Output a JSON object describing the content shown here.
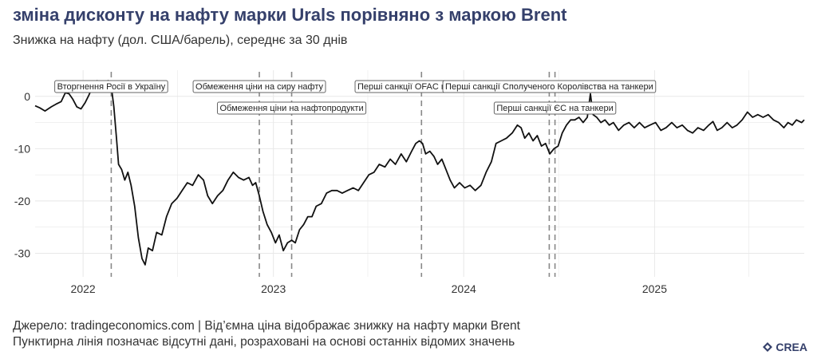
{
  "header": {
    "title": "зміна дисконту на нафту марки Urals порівняно з маркою Brent",
    "subtitle": "Знижка на нафту (дол. США/барель), середнє за 30 днів"
  },
  "footer": {
    "source": "Джерело: tradingeconomics.com | Від’ємна ціна відображає знижку на нафту марки Brent",
    "note": "Пунктирна лінія позначає відсутні дані, розраховані на основі останніх відомих значень",
    "logo_text": "CREA"
  },
  "colors": {
    "title": "#35406b",
    "line": "#111111",
    "event_line": "#888888",
    "grid": "#e8e8e8"
  },
  "chart_data": {
    "type": "line",
    "title": "зміна дисконту на нафту марки Urals порівняно з маркою Brent",
    "subtitle": "Знижка на нафту (дол. США/барель), середнє за 30 днів",
    "xlabel": "",
    "ylabel": "",
    "xlim": [
      "2021-10-01",
      "2025-10-15"
    ],
    "ylim": [
      -34.5,
      5
    ],
    "yticks": [
      0,
      -10,
      -20,
      -30
    ],
    "xticks": [
      "2022",
      "2023",
      "2024",
      "2025"
    ],
    "grid": true,
    "series": [
      {
        "points": [
          [
            "2021-10-01",
            -1.8
          ],
          [
            "2021-10-10",
            -2.2
          ],
          [
            "2021-10-20",
            -2.8
          ],
          [
            "2021-11-01",
            -2.0
          ],
          [
            "2021-11-10",
            -1.5
          ],
          [
            "2021-11-20",
            -1.0
          ],
          [
            "2021-11-28",
            0.7
          ],
          [
            "2021-12-05",
            0.5
          ],
          [
            "2021-12-12",
            -0.5
          ],
          [
            "2021-12-20",
            -2.0
          ],
          [
            "2021-12-28",
            -2.4
          ],
          [
            "2022-01-05",
            -1.2
          ],
          [
            "2022-01-12",
            0.2
          ],
          [
            "2022-01-20",
            2.0
          ],
          [
            "2022-01-28",
            3.0
          ],
          [
            "2022-02-05",
            2.5
          ],
          [
            "2022-02-12",
            1.8
          ],
          [
            "2022-02-18",
            3.0
          ],
          [
            "2022-02-24",
            2.0
          ],
          [
            "2022-03-01",
            -2.0
          ],
          [
            "2022-03-06",
            -8.0
          ],
          [
            "2022-03-10",
            -13.0
          ],
          [
            "2022-03-16",
            -14.0
          ],
          [
            "2022-03-22",
            -16.0
          ],
          [
            "2022-03-28",
            -14.5
          ],
          [
            "2022-04-03",
            -17.0
          ],
          [
            "2022-04-10",
            -21.0
          ],
          [
            "2022-04-17",
            -27.0
          ],
          [
            "2022-04-24",
            -31.0
          ],
          [
            "2022-04-30",
            -32.2
          ],
          [
            "2022-05-06",
            -29.0
          ],
          [
            "2022-05-14",
            -29.5
          ],
          [
            "2022-05-22",
            -26.0
          ],
          [
            "2022-06-01",
            -26.5
          ],
          [
            "2022-06-10",
            -23.0
          ],
          [
            "2022-06-20",
            -20.5
          ],
          [
            "2022-06-30",
            -19.5
          ],
          [
            "2022-07-10",
            -18.0
          ],
          [
            "2022-07-20",
            -16.5
          ],
          [
            "2022-07-30",
            -17.0
          ],
          [
            "2022-08-10",
            -15.0
          ],
          [
            "2022-08-20",
            -16.0
          ],
          [
            "2022-08-28",
            -19.0
          ],
          [
            "2022-09-06",
            -20.5
          ],
          [
            "2022-09-16",
            -19.0
          ],
          [
            "2022-09-26",
            -18.0
          ],
          [
            "2022-10-06",
            -16.0
          ],
          [
            "2022-10-16",
            -14.5
          ],
          [
            "2022-10-26",
            -15.5
          ],
          [
            "2022-11-05",
            -16.0
          ],
          [
            "2022-11-15",
            -15.5
          ],
          [
            "2022-11-22",
            -17.0
          ],
          [
            "2022-11-28",
            -16.5
          ],
          [
            "2022-12-05",
            -19.0
          ],
          [
            "2022-12-12",
            -22.0
          ],
          [
            "2022-12-20",
            -24.5
          ],
          [
            "2022-12-28",
            -26.0
          ],
          [
            "2023-01-05",
            -28.0
          ],
          [
            "2023-01-12",
            -26.5
          ],
          [
            "2023-01-20",
            -29.5
          ],
          [
            "2023-01-28",
            -28.0
          ],
          [
            "2023-02-05",
            -27.5
          ],
          [
            "2023-02-12",
            -28.0
          ],
          [
            "2023-02-20",
            -25.5
          ],
          [
            "2023-02-28",
            -24.5
          ],
          [
            "2023-03-08",
            -23.0
          ],
          [
            "2023-03-16",
            -23.0
          ],
          [
            "2023-03-24",
            -21.0
          ],
          [
            "2023-04-03",
            -20.5
          ],
          [
            "2023-04-13",
            -18.5
          ],
          [
            "2023-04-23",
            -18.0
          ],
          [
            "2023-05-03",
            -18.0
          ],
          [
            "2023-05-13",
            -18.5
          ],
          [
            "2023-05-23",
            -18.0
          ],
          [
            "2023-06-03",
            -17.5
          ],
          [
            "2023-06-13",
            -18.0
          ],
          [
            "2023-06-23",
            -16.5
          ],
          [
            "2023-07-03",
            -15.0
          ],
          [
            "2023-07-13",
            -14.5
          ],
          [
            "2023-07-23",
            -13.0
          ],
          [
            "2023-08-03",
            -13.5
          ],
          [
            "2023-08-13",
            -12.0
          ],
          [
            "2023-08-23",
            -13.0
          ],
          [
            "2023-09-03",
            -11.0
          ],
          [
            "2023-09-13",
            -12.5
          ],
          [
            "2023-09-23",
            -10.5
          ],
          [
            "2023-10-01",
            -9.0
          ],
          [
            "2023-10-08",
            -8.5
          ],
          [
            "2023-10-14",
            -9.0
          ],
          [
            "2023-10-20",
            -11.0
          ],
          [
            "2023-10-28",
            -10.5
          ],
          [
            "2023-11-05",
            -11.5
          ],
          [
            "2023-11-12",
            -13.0
          ],
          [
            "2023-11-20",
            -12.0
          ],
          [
            "2023-11-28",
            -14.0
          ],
          [
            "2023-12-06",
            -16.0
          ],
          [
            "2023-12-14",
            -17.5
          ],
          [
            "2023-12-24",
            -16.5
          ],
          [
            "2024-01-03",
            -17.5
          ],
          [
            "2024-01-13",
            -17.0
          ],
          [
            "2024-01-23",
            -18.0
          ],
          [
            "2024-02-03",
            -17.0
          ],
          [
            "2024-02-13",
            -14.5
          ],
          [
            "2024-02-23",
            -12.5
          ],
          [
            "2024-03-03",
            -9.0
          ],
          [
            "2024-03-13",
            -8.5
          ],
          [
            "2024-03-23",
            -8.0
          ],
          [
            "2024-04-03",
            -7.0
          ],
          [
            "2024-04-13",
            -5.5
          ],
          [
            "2024-04-20",
            -6.0
          ],
          [
            "2024-04-27",
            -8.0
          ],
          [
            "2024-05-05",
            -7.0
          ],
          [
            "2024-05-13",
            -8.5
          ],
          [
            "2024-05-21",
            -7.5
          ],
          [
            "2024-05-29",
            -9.5
          ],
          [
            "2024-06-06",
            -9.0
          ],
          [
            "2024-06-14",
            -11.0
          ],
          [
            "2024-06-22",
            -10.0
          ],
          [
            "2024-06-30",
            -9.5
          ],
          [
            "2024-07-08",
            -7.0
          ],
          [
            "2024-07-16",
            -5.5
          ],
          [
            "2024-07-24",
            -4.5
          ],
          [
            "2024-08-01",
            -4.5
          ],
          [
            "2024-08-09",
            -4.0
          ],
          [
            "2024-08-17",
            -5.0
          ],
          [
            "2024-08-25",
            -4.0
          ],
          [
            "2024-08-31",
            0.5
          ],
          [
            "2024-09-05",
            -3.5
          ],
          [
            "2024-09-12",
            -4.0
          ],
          [
            "2024-09-20",
            -5.0
          ],
          [
            "2024-09-28",
            -4.5
          ],
          [
            "2024-10-06",
            -5.5
          ],
          [
            "2024-10-14",
            -5.0
          ],
          [
            "2024-10-24",
            -6.5
          ],
          [
            "2024-11-03",
            -5.5
          ],
          [
            "2024-11-13",
            -5.0
          ],
          [
            "2024-11-23",
            -6.0
          ],
          [
            "2024-12-03",
            -5.0
          ],
          [
            "2024-12-13",
            -6.0
          ],
          [
            "2024-12-23",
            -5.5
          ],
          [
            "2025-01-03",
            -5.0
          ],
          [
            "2025-01-13",
            -6.5
          ],
          [
            "2025-01-23",
            -6.0
          ],
          [
            "2025-02-03",
            -5.0
          ],
          [
            "2025-02-13",
            -6.0
          ],
          [
            "2025-02-23",
            -5.5
          ],
          [
            "2025-03-05",
            -6.5
          ],
          [
            "2025-03-15",
            -7.0
          ],
          [
            "2025-03-25",
            -6.0
          ],
          [
            "2025-04-05",
            -6.5
          ],
          [
            "2025-04-15",
            -5.5
          ],
          [
            "2025-04-23",
            -4.8
          ],
          [
            "2025-05-01",
            -6.5
          ],
          [
            "2025-05-10",
            -6.0
          ],
          [
            "2025-05-20",
            -5.0
          ],
          [
            "2025-05-30",
            -6.0
          ],
          [
            "2025-06-08",
            -5.5
          ],
          [
            "2025-06-18",
            -4.5
          ],
          [
            "2025-06-28",
            -3.0
          ],
          [
            "2025-07-08",
            -4.0
          ],
          [
            "2025-07-18",
            -3.5
          ],
          [
            "2025-07-28",
            -4.0
          ],
          [
            "2025-08-07",
            -3.5
          ],
          [
            "2025-08-17",
            -4.5
          ],
          [
            "2025-08-27",
            -5.0
          ],
          [
            "2025-09-06",
            -6.0
          ],
          [
            "2025-09-14",
            -5.0
          ],
          [
            "2025-09-22",
            -5.5
          ],
          [
            "2025-09-30",
            -4.5
          ],
          [
            "2025-10-10",
            -5.0
          ],
          [
            "2025-10-15",
            -4.5
          ]
        ]
      }
    ],
    "events": [
      {
        "label": "Вторгнення Росії в Україну",
        "date": "2022-02-24",
        "row": 0
      },
      {
        "label": "Обмеження ціни на сиру нафту",
        "date": "2022-12-05",
        "row": 0
      },
      {
        "label": "Обмеження ціни на нафтопродукти",
        "date": "2023-02-05",
        "row": 1
      },
      {
        "label": "Перші санкції OFAC на танкери",
        "date": "2023-10-12",
        "row": 0
      },
      {
        "label": "Перші санкції Сполученого Королівства на танкери",
        "date": "2024-06-13",
        "row": 0
      },
      {
        "label": "Перші санкції ЄС на танкери",
        "date": "2024-06-24",
        "row": 1
      }
    ]
  }
}
